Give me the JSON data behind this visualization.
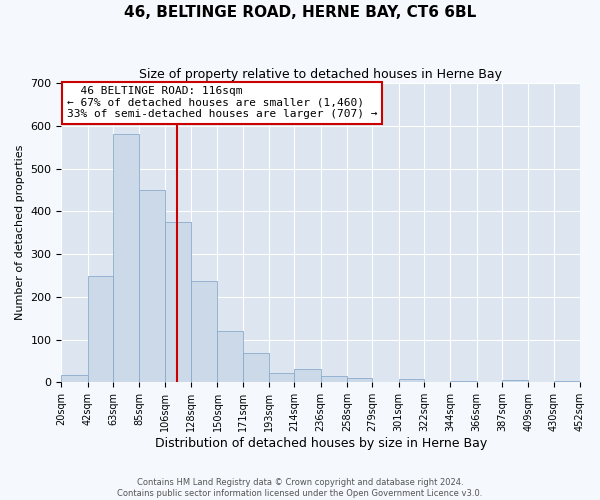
{
  "title": "46, BELTINGE ROAD, HERNE BAY, CT6 6BL",
  "subtitle": "Size of property relative to detached houses in Herne Bay",
  "xlabel": "Distribution of detached houses by size in Herne Bay",
  "ylabel": "Number of detached properties",
  "bar_color": "#ccd9e8",
  "bar_edge_color": "#8aabcc",
  "background_color": "#dde6f0",
  "fig_background_color": "#f5f8fc",
  "grid_color": "#ffffff",
  "vline_x": 116,
  "vline_color": "#cc0000",
  "bin_edges": [
    20,
    42,
    63,
    85,
    106,
    128,
    150,
    171,
    193,
    214,
    236,
    258,
    279,
    301,
    322,
    344,
    366,
    387,
    409,
    430,
    452
  ],
  "bin_heights": [
    18,
    248,
    582,
    450,
    375,
    236,
    120,
    68,
    22,
    31,
    14,
    10,
    0,
    8,
    0,
    3,
    0,
    5,
    0,
    2
  ],
  "tick_labels": [
    "20sqm",
    "42sqm",
    "63sqm",
    "85sqm",
    "106sqm",
    "128sqm",
    "150sqm",
    "171sqm",
    "193sqm",
    "214sqm",
    "236sqm",
    "258sqm",
    "279sqm",
    "301sqm",
    "322sqm",
    "344sqm",
    "366sqm",
    "387sqm",
    "409sqm",
    "430sqm",
    "452sqm"
  ],
  "ylim": [
    0,
    700
  ],
  "yticks": [
    0,
    100,
    200,
    300,
    400,
    500,
    600,
    700
  ],
  "annotation_title": "46 BELTINGE ROAD: 116sqm",
  "annotation_line1": "← 67% of detached houses are smaller (1,460)",
  "annotation_line2": "33% of semi-detached houses are larger (707) →",
  "annotation_box_color": "#ffffff",
  "annotation_box_edge": "#cc0000",
  "footer1": "Contains HM Land Registry data © Crown copyright and database right 2024.",
  "footer2": "Contains public sector information licensed under the Open Government Licence v3.0."
}
